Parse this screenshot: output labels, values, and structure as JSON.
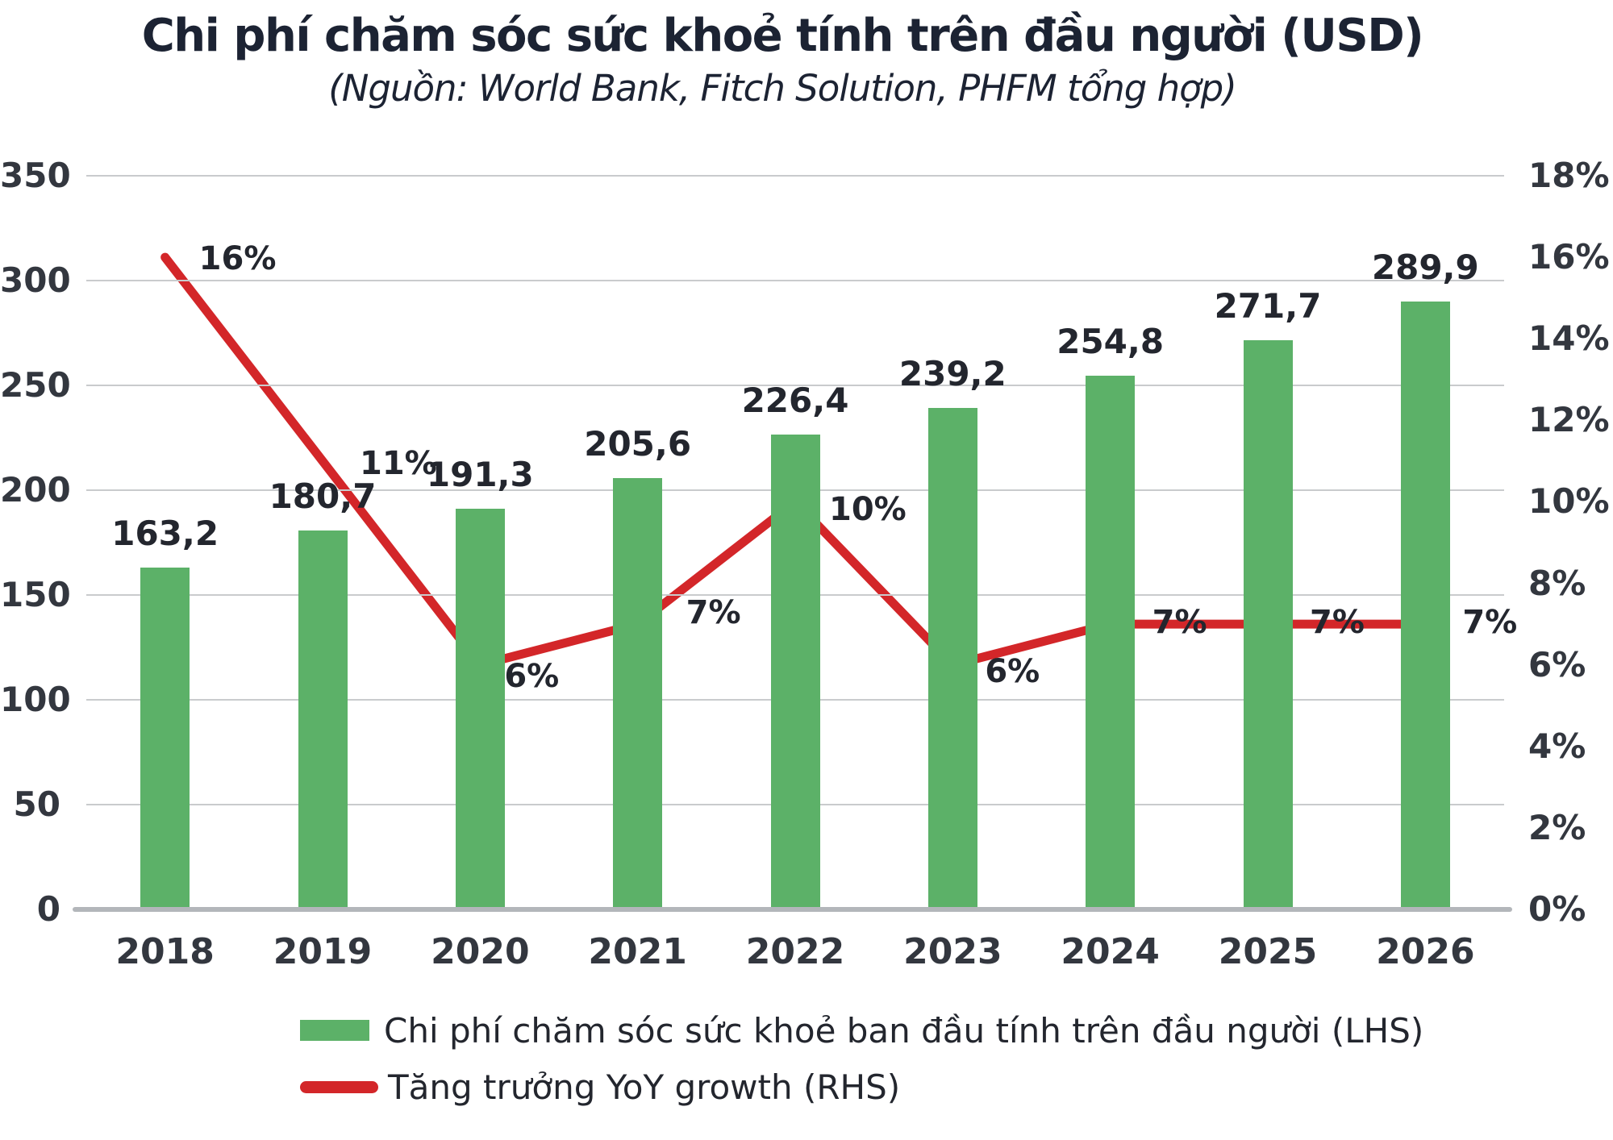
{
  "title": "Chi phí chăm sóc sức khoẻ tính trên đầu người (USD)",
  "subtitle": "(Nguồn: World Bank, Fitch Solution, PHFM tổng hợp)",
  "chart_data": {
    "type": "bar+line combo",
    "categories": [
      "2018",
      "2019",
      "2020",
      "2021",
      "2022",
      "2023",
      "2024",
      "2025",
      "2026"
    ],
    "series": [
      {
        "name": "Chi phí chăm sóc sức khoẻ ban đầu tính trên đầu người (LHS)",
        "type": "bar",
        "axis": "left",
        "color": "#5cb168",
        "values": [
          163.2,
          180.7,
          191.3,
          205.6,
          226.4,
          239.2,
          254.8,
          271.7,
          289.9
        ],
        "labels": [
          "163,2",
          "180,7",
          "191,3",
          "205,6",
          "226,4",
          "239,2",
          "254,8",
          "271,7",
          "289,9"
        ]
      },
      {
        "name": "Tăng trưởng YoY growth (RHS)",
        "type": "line",
        "axis": "right",
        "color": "#d32629",
        "values": [
          16,
          11,
          6,
          7,
          10,
          6,
          7,
          7,
          7
        ],
        "labels": [
          "16%",
          "11%",
          "6%",
          "7%",
          "10%",
          "6%",
          "7%",
          "7%",
          "7%"
        ]
      }
    ],
    "left_axis": {
      "min": 0,
      "max": 350,
      "step": 50,
      "tick_labels": [
        "350",
        "300",
        "250",
        "200",
        "150",
        "100",
        "50",
        "0"
      ]
    },
    "right_axis": {
      "min": 0,
      "max": 18,
      "step": 2,
      "tick_labels": [
        "18%",
        "16%",
        "14%",
        "12%",
        "10%",
        "8%",
        "6%",
        "4%",
        "2%",
        "0%"
      ]
    },
    "grid": "horizontal-only",
    "legend_position": "bottom-left",
    "colors": {
      "bar": "#5cb168",
      "line": "#d32629",
      "gridline": "#c9cbcd",
      "axis_line": "#b3b6ba",
      "text": "#23262e",
      "title": "#1c2333"
    }
  }
}
